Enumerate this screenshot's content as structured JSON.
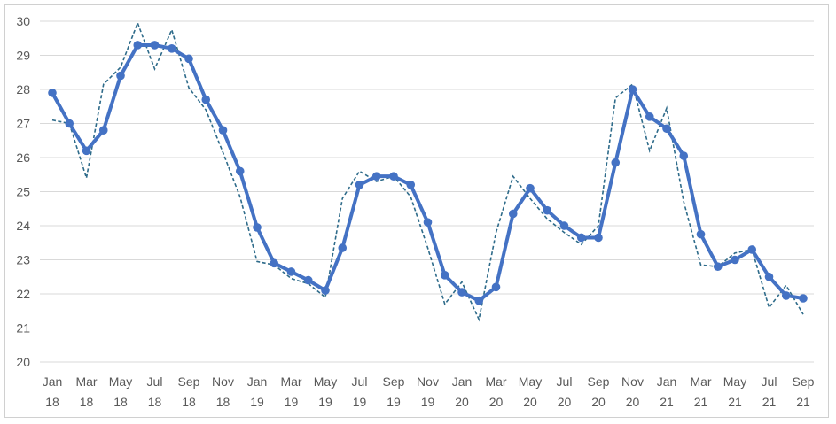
{
  "chart_data": {
    "type": "line",
    "title": "",
    "xlabel": "",
    "ylabel": "",
    "ylim": [
      20,
      30
    ],
    "yticks": [
      20,
      21,
      22,
      23,
      24,
      25,
      26,
      27,
      28,
      29,
      30
    ],
    "grid": true,
    "legend": "none",
    "x": [
      "Jan 18",
      "Feb 18",
      "Mar 18",
      "Apr 18",
      "May 18",
      "Jun 18",
      "Jul 18",
      "Aug 18",
      "Sep 18",
      "Oct 18",
      "Nov 18",
      "Dec 18",
      "Jan 19",
      "Feb 19",
      "Mar 19",
      "Apr 19",
      "May 19",
      "Jun 19",
      "Jul 19",
      "Aug 19",
      "Sep 19",
      "Oct 19",
      "Nov 19",
      "Dec 19",
      "Jan 20",
      "Feb 20",
      "Mar 20",
      "Apr 20",
      "May 20",
      "Jun 20",
      "Jul 20",
      "Aug 20",
      "Sep 20",
      "Oct 20",
      "Nov 20",
      "Dec 20",
      "Jan 21",
      "Feb 21",
      "Mar 21",
      "Apr 21",
      "May 21",
      "Jun 21",
      "Jul 21",
      "Aug 21",
      "Sep 21"
    ],
    "xtick_labels": [
      {
        "month": "Jan",
        "year": "18"
      },
      {
        "month": "Mar",
        "year": "18"
      },
      {
        "month": "May",
        "year": "18"
      },
      {
        "month": "Jul",
        "year": "18"
      },
      {
        "month": "Sep",
        "year": "18"
      },
      {
        "month": "Nov",
        "year": "18"
      },
      {
        "month": "Jan",
        "year": "19"
      },
      {
        "month": "Mar",
        "year": "19"
      },
      {
        "month": "May",
        "year": "19"
      },
      {
        "month": "Jul",
        "year": "19"
      },
      {
        "month": "Sep",
        "year": "19"
      },
      {
        "month": "Nov",
        "year": "19"
      },
      {
        "month": "Jan",
        "year": "20"
      },
      {
        "month": "Mar",
        "year": "20"
      },
      {
        "month": "May",
        "year": "20"
      },
      {
        "month": "Jul",
        "year": "20"
      },
      {
        "month": "Sep",
        "year": "20"
      },
      {
        "month": "Nov",
        "year": "20"
      },
      {
        "month": "Jan",
        "year": "21"
      },
      {
        "month": "Mar",
        "year": "21"
      },
      {
        "month": "May",
        "year": "21"
      },
      {
        "month": "Jul",
        "year": "21"
      },
      {
        "month": "Sep",
        "year": "21"
      }
    ],
    "series": [
      {
        "style": "solid-with-markers",
        "color": "#4472C4",
        "values": [
          27.9,
          27.0,
          26.2,
          26.8,
          28.4,
          29.3,
          29.3,
          29.2,
          28.9,
          27.7,
          26.8,
          25.6,
          23.95,
          22.9,
          22.65,
          22.4,
          22.1,
          23.35,
          25.2,
          25.45,
          25.45,
          25.2,
          24.1,
          22.55,
          22.05,
          21.8,
          22.2,
          24.35,
          25.1,
          24.45,
          24.0,
          23.65,
          23.65,
          25.85,
          28.0,
          27.2,
          26.85,
          26.05,
          23.75,
          22.8,
          23.0,
          23.3,
          22.5,
          21.95,
          21.87
        ]
      },
      {
        "style": "dashed",
        "color": "#2E6B8A",
        "values": [
          27.1,
          27.0,
          25.4,
          28.15,
          28.65,
          29.95,
          28.6,
          29.75,
          28.05,
          27.4,
          26.15,
          24.85,
          22.95,
          22.85,
          22.45,
          22.3,
          21.9,
          24.8,
          25.6,
          25.3,
          25.45,
          24.85,
          23.35,
          21.7,
          22.35,
          21.25,
          23.8,
          25.45,
          24.8,
          24.2,
          23.8,
          23.45,
          24.0,
          27.75,
          28.15,
          26.2,
          27.45,
          24.7,
          22.85,
          22.8,
          23.2,
          23.3,
          21.6,
          22.25,
          21.4
        ]
      }
    ]
  }
}
